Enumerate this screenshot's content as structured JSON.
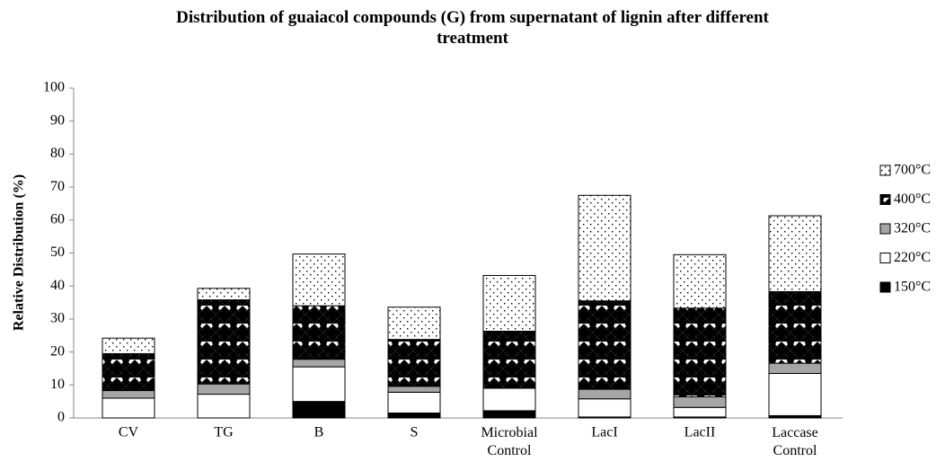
{
  "chart_data": {
    "type": "stacked_bar",
    "title": "Distribution of guaiacol compounds (G)  from supernatant of lignin after different treatment",
    "ylabel": "Relative Distribution (%)",
    "categories": [
      "CV",
      "TG",
      "B",
      "S",
      "Microbial Control",
      "LacI",
      "LacII",
      "Laccase Control"
    ],
    "series": [
      {
        "name": "150°C",
        "color": "#000000",
        "pattern": "solid",
        "values": [
          0,
          0,
          5,
          1.5,
          2.2,
          0.3,
          0.3,
          0.7
        ]
      },
      {
        "name": "220°C",
        "color": "#ffffff",
        "pattern": "solid",
        "values": [
          6,
          7.2,
          10.5,
          6.3,
          6.8,
          5.5,
          2.9,
          12.8
        ]
      },
      {
        "name": "320°C",
        "color": "#a6a6a6",
        "pattern": "solid",
        "values": [
          2.3,
          3.1,
          2.3,
          1.8,
          0.1,
          2.9,
          3.2,
          3.1
        ]
      },
      {
        "name": "400°C",
        "color": "#000000",
        "pattern": "diamonds",
        "values": [
          11.2,
          25.5,
          16.2,
          14.2,
          17.2,
          26.8,
          26.9,
          21.7
        ]
      },
      {
        "name": "700°C",
        "color": "#000000",
        "pattern": "dots",
        "values": [
          4.7,
          3.5,
          15.7,
          9.8,
          16.9,
          32,
          16.2,
          23
        ]
      }
    ],
    "ylim": [
      0,
      100
    ],
    "yticks": [
      0,
      10,
      20,
      30,
      40,
      50,
      60,
      70,
      80,
      90,
      100
    ],
    "grid": false,
    "legend": "right"
  }
}
